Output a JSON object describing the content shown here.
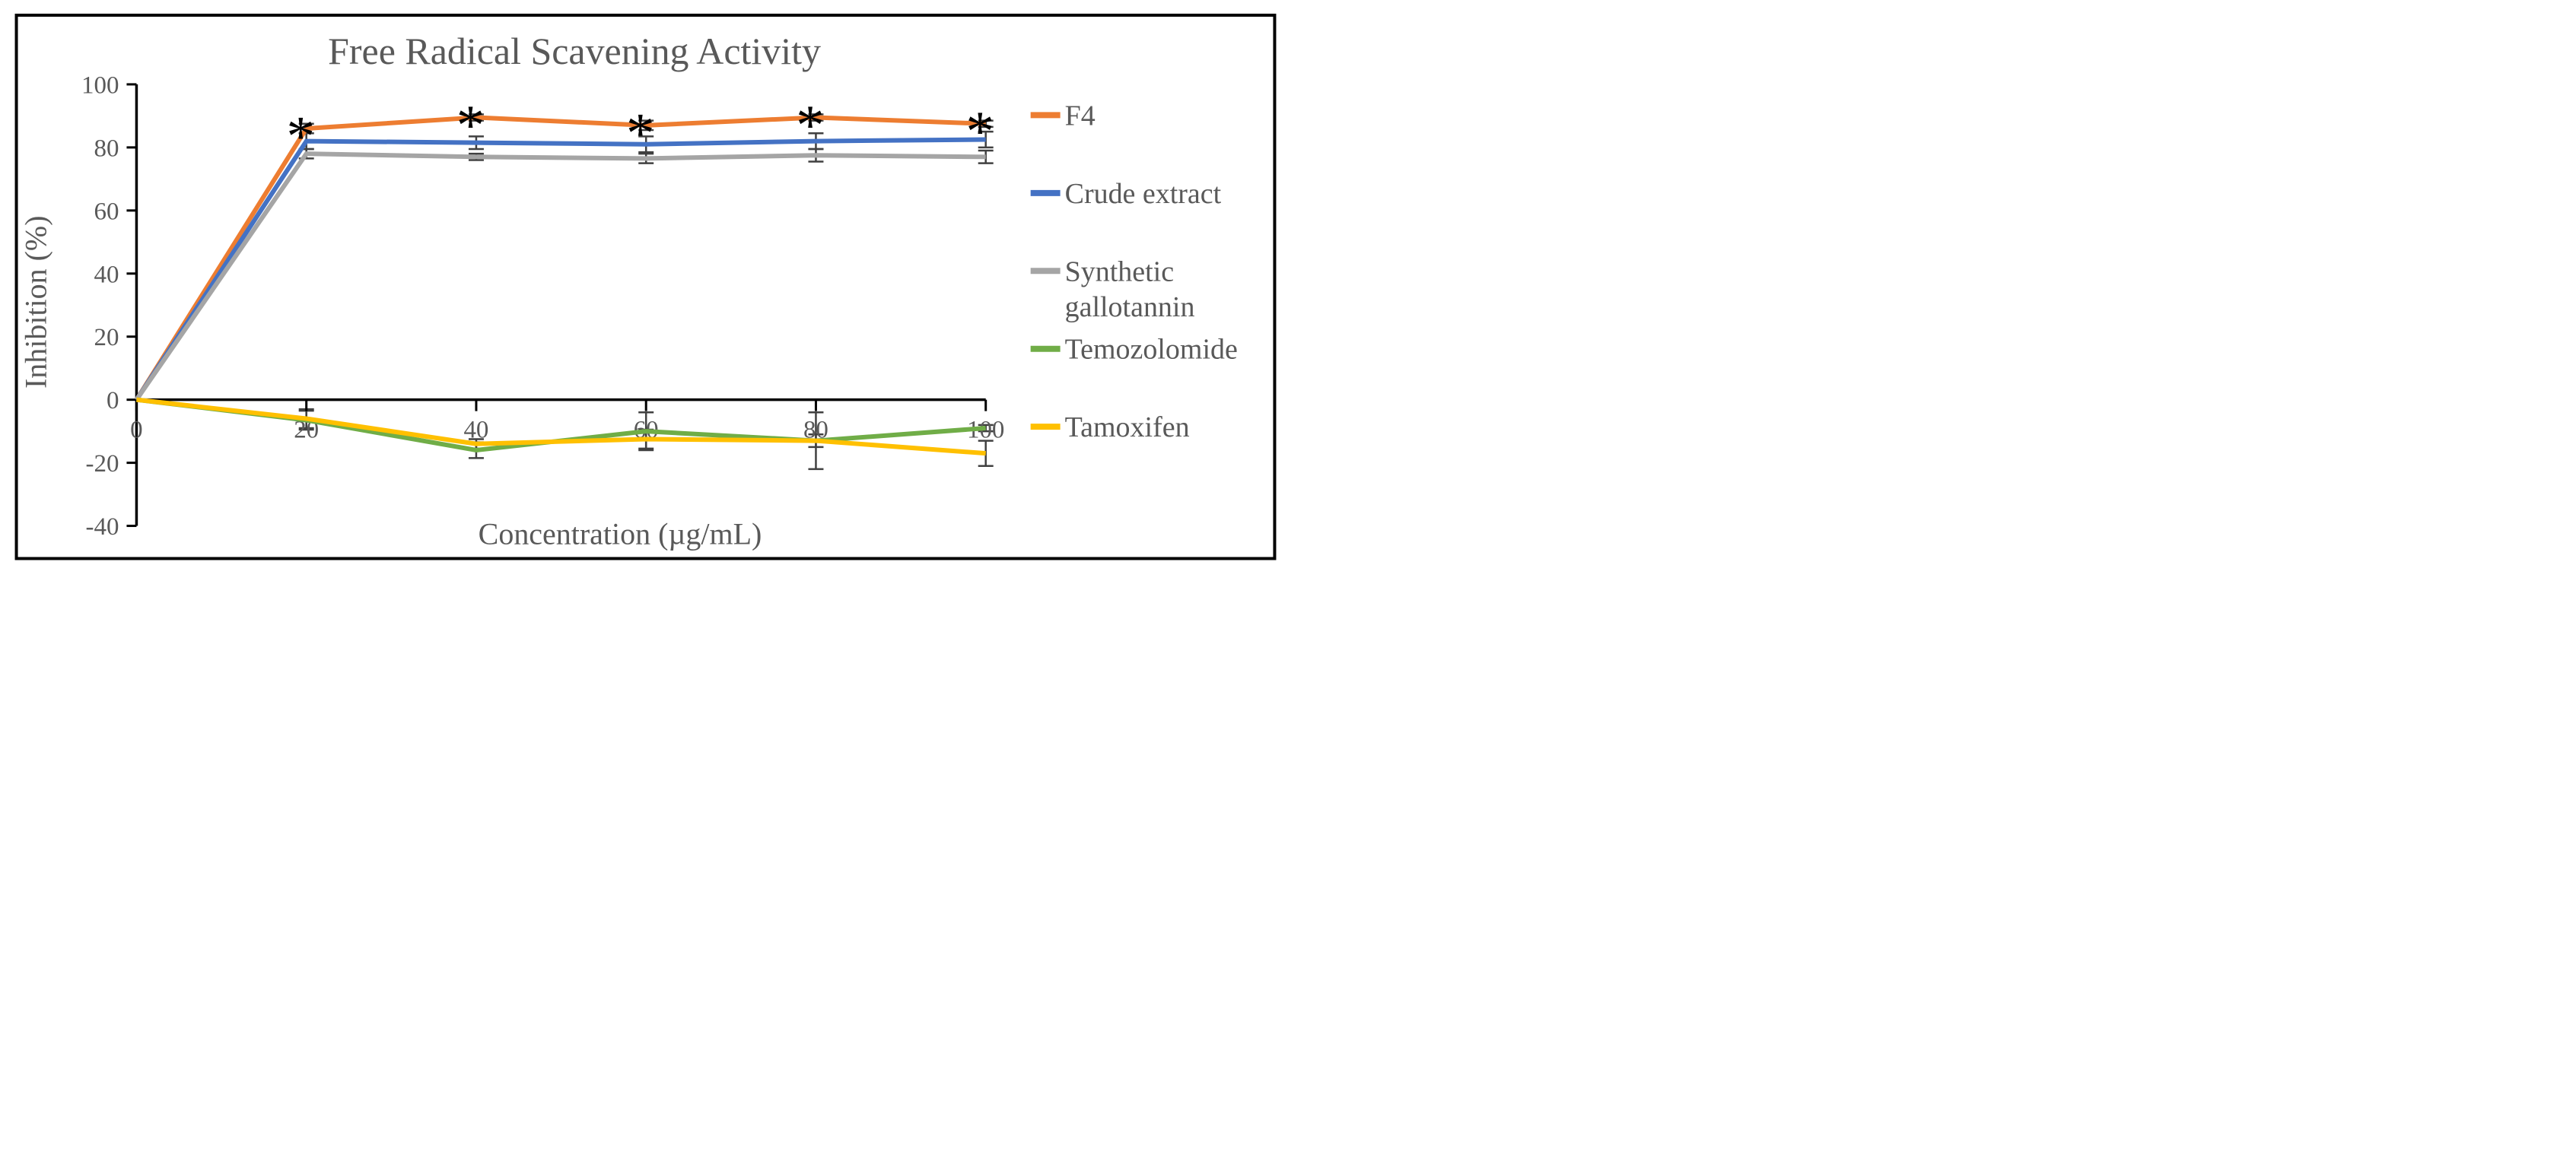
{
  "figure": {
    "background": "#FFFFFF",
    "border_color": "#000000",
    "text_color": "#595959",
    "axis_color": "#000000",
    "error_bar_color": "#404040"
  },
  "chart_data": {
    "type": "line",
    "title": "Free Radical Scavening Activity",
    "xlabel": "Concentration (µg/mL)",
    "ylabel": "Inhibition (%)",
    "x": [
      0,
      20,
      40,
      60,
      80,
      100
    ],
    "x_tick_labels": [
      "0",
      "20",
      "40",
      "60",
      "80",
      "100"
    ],
    "y_ticks": [
      100,
      80,
      60,
      40,
      20,
      0,
      -20,
      -40
    ],
    "ylim": [
      -40,
      100
    ],
    "xlim": [
      0,
      100
    ],
    "grid": false,
    "legend_position": "right",
    "series": [
      {
        "name": "F4",
        "legend_lines": [
          "F4"
        ],
        "color": "#ED7D31",
        "values": [
          0,
          86,
          89.5,
          87,
          89.5,
          87.5
        ],
        "error": [
          0,
          1.5,
          1,
          1.5,
          1,
          1
        ]
      },
      {
        "name": "Crude extract",
        "legend_lines": [
          "Crude extract"
        ],
        "color": "#4472C4",
        "values": [
          0,
          82,
          81.5,
          81,
          82,
          82.5
        ],
        "error": [
          0,
          2.5,
          2,
          2.5,
          2.5,
          2.5
        ]
      },
      {
        "name": "Synthetic gallotannin",
        "legend_lines": [
          "Synthetic",
          "gallotannin"
        ],
        "color": "#A5A5A5",
        "values": [
          0,
          78,
          77,
          76.5,
          77.5,
          77
        ],
        "error": [
          0,
          1.5,
          1,
          1.5,
          2,
          2
        ]
      },
      {
        "name": "Temozolomide",
        "legend_lines": [
          "Temozolomide"
        ],
        "color": "#70AD47",
        "values": [
          0,
          -6.5,
          -16,
          -10,
          -13,
          -9
        ],
        "error": [
          0,
          3,
          2.5,
          6,
          9,
          1
        ]
      },
      {
        "name": "Tamoxifen",
        "legend_lines": [
          "Tamoxifen"
        ],
        "color": "#FFC000",
        "values": [
          0,
          -6,
          -14,
          -12.5,
          -13,
          -17
        ],
        "error": [
          0,
          3,
          1.5,
          3,
          2,
          4
        ]
      }
    ],
    "significance_markers": {
      "symbol": "*",
      "series": "F4",
      "x": [
        20,
        40,
        60,
        80,
        100
      ]
    }
  }
}
